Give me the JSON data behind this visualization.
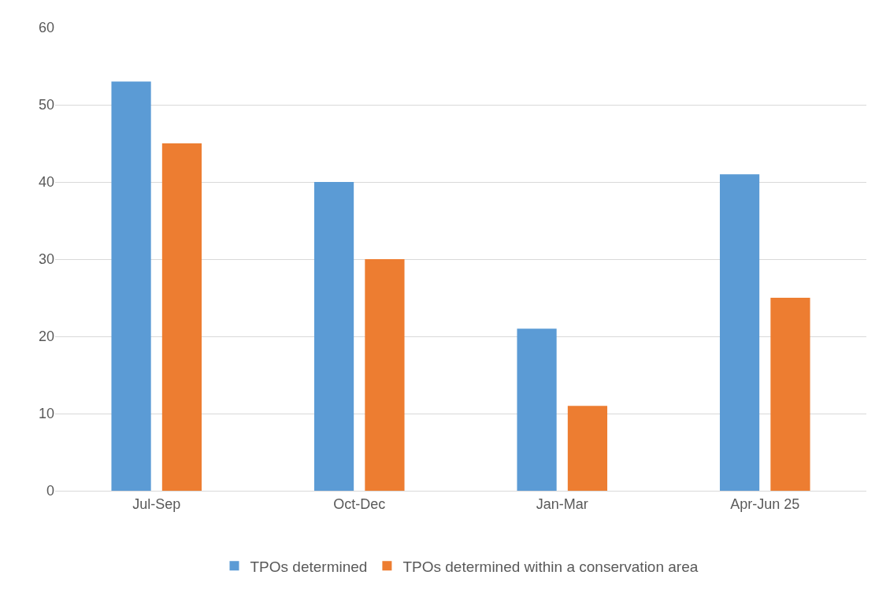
{
  "chart_data": {
    "type": "bar",
    "categories": [
      "Jul-Sep",
      "Oct-Dec",
      "Jan-Mar",
      "Apr-Jun 25"
    ],
    "series": [
      {
        "name": "TPOs determined",
        "color": "#5b9bd5",
        "values": [
          53,
          40,
          21,
          41
        ]
      },
      {
        "name": "TPOs determined within a conservation area",
        "color": "#ed7d31",
        "values": [
          45,
          30,
          11,
          25
        ]
      }
    ],
    "ylim": [
      0,
      60
    ],
    "yticks": [
      0,
      10,
      20,
      30,
      40,
      50,
      60
    ],
    "grid": "y",
    "legend": "bottom"
  }
}
